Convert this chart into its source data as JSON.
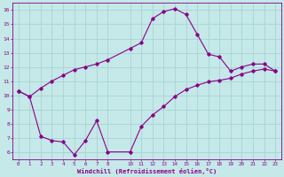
{
  "xlabel": "Windchill (Refroidissement éolien,°C)",
  "background_color": "#c5e8e8",
  "grid_color": "#a8d4d4",
  "line_color": "#880088",
  "hours": [
    0,
    1,
    2,
    3,
    4,
    5,
    6,
    7,
    8,
    10,
    11,
    12,
    13,
    14,
    15,
    16,
    17,
    18,
    19,
    20,
    21,
    22,
    23
  ],
  "temp": [
    10.3,
    9.9,
    10.5,
    11.0,
    11.4,
    11.8,
    12.0,
    12.2,
    12.5,
    13.3,
    13.7,
    15.4,
    15.9,
    16.1,
    15.7,
    14.3,
    12.9,
    12.7,
    11.7,
    12.0,
    12.2,
    12.2,
    11.7
  ],
  "windchill": [
    10.3,
    9.9,
    7.1,
    6.8,
    6.7,
    5.8,
    6.8,
    8.2,
    6.0,
    6.0,
    7.8,
    8.6,
    9.2,
    9.9,
    10.4,
    10.7,
    10.95,
    11.05,
    11.2,
    11.5,
    11.7,
    11.85,
    11.7
  ],
  "xlim": [
    -0.5,
    23.5
  ],
  "ylim": [
    5.5,
    16.5
  ],
  "yticks": [
    6,
    7,
    8,
    9,
    10,
    11,
    12,
    13,
    14,
    15,
    16
  ],
  "xticks": [
    0,
    1,
    2,
    3,
    4,
    5,
    6,
    7,
    8,
    10,
    11,
    12,
    13,
    14,
    15,
    16,
    17,
    18,
    19,
    20,
    21,
    22,
    23
  ],
  "xtick_labels": [
    "0",
    "1",
    "2",
    "3",
    "4",
    "5",
    "6",
    "7",
    "8",
    "10",
    "11",
    "12",
    "13",
    "14",
    "15",
    "16",
    "17",
    "18",
    "19",
    "20",
    "21",
    "22",
    "23"
  ]
}
